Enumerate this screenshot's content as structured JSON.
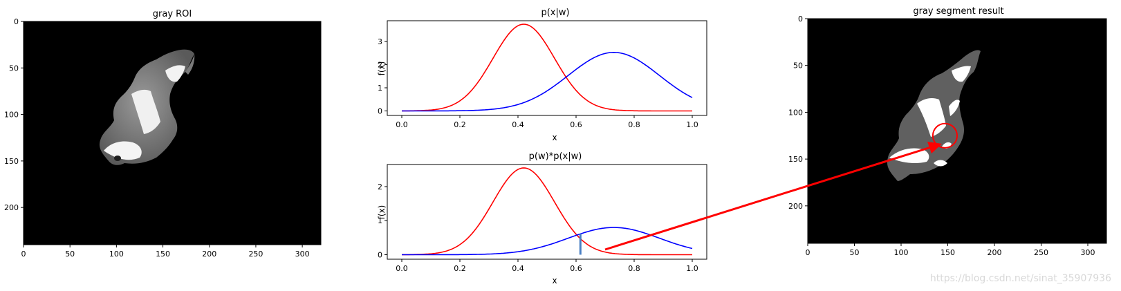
{
  "watermark": "https://blog.csdn.net/sinat_35907936",
  "chart_data": [
    {
      "type": "image",
      "title": "gray ROI",
      "xticks": [
        0,
        50,
        100,
        150,
        200,
        250,
        300
      ],
      "yticks": [
        0,
        50,
        100,
        150,
        200
      ],
      "xlim": [
        0,
        320
      ],
      "ylim": [
        240,
        0
      ],
      "background": "#000000"
    },
    {
      "type": "line",
      "title": "p(x|w)",
      "xlabel": "x",
      "ylabel": "f(x)",
      "xlim": [
        0,
        1
      ],
      "ylim": [
        0,
        3.9
      ],
      "xticks": [
        "0.0",
        "0.2",
        "0.4",
        "0.6",
        "0.8",
        "1.0"
      ],
      "yticks": [
        "0",
        "1",
        "2",
        "3"
      ],
      "series": [
        {
          "color": "#ff0000",
          "mean": 0.42,
          "sigma": 0.106,
          "peak": 3.75
        },
        {
          "color": "#0000ff",
          "mean": 0.73,
          "sigma": 0.157,
          "peak": 2.53
        }
      ]
    },
    {
      "type": "line",
      "title": "p(w)*p(x|w)",
      "xlabel": "x",
      "ylabel": "f(x)",
      "xlim": [
        0,
        1
      ],
      "ylim": [
        0,
        2.65
      ],
      "xticks": [
        "0.0",
        "0.2",
        "0.4",
        "0.6",
        "0.8",
        "1.0"
      ],
      "yticks": [
        "0",
        "1",
        "2"
      ],
      "series": [
        {
          "color": "#ff0000",
          "mean": 0.42,
          "sigma": 0.106,
          "peak": 2.55
        },
        {
          "color": "#0000ff",
          "mean": 0.73,
          "sigma": 0.157,
          "peak": 0.8
        }
      ],
      "threshold_x": 0.615,
      "threshold_color": "#4a7fc4"
    },
    {
      "type": "image",
      "title": "gray segment result",
      "xticks": [
        0,
        50,
        100,
        150,
        200,
        250,
        300
      ],
      "yticks": [
        0,
        50,
        100,
        150,
        200
      ],
      "xlim": [
        0,
        320
      ],
      "ylim": [
        240,
        0
      ],
      "background": "#000000",
      "annotation": {
        "shape": "circle",
        "color": "#ff0000",
        "cx": 147,
        "cy": 125,
        "r": 13
      }
    }
  ]
}
